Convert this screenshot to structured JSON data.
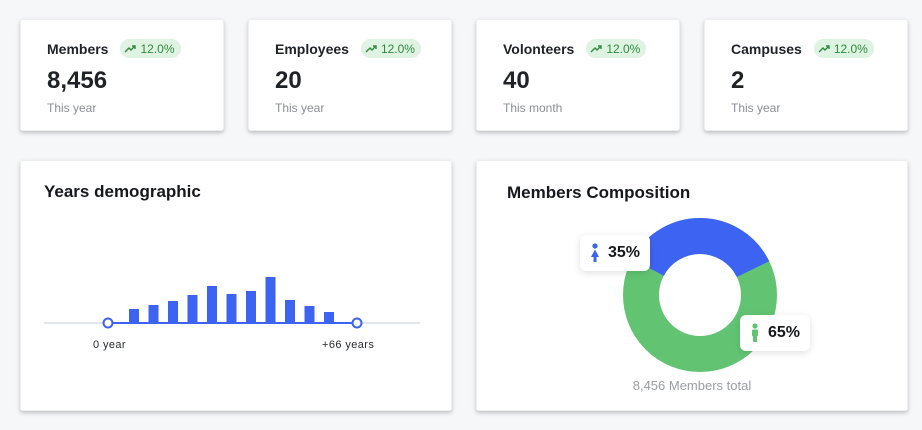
{
  "stats": [
    {
      "title": "Members",
      "badge": "12.0%",
      "value": "8,456",
      "period": "This year"
    },
    {
      "title": "Employees",
      "badge": "12.0%",
      "value": "20",
      "period": "This year"
    },
    {
      "title": "Volonteers",
      "badge": "12.0%",
      "value": "40",
      "period": "This month"
    },
    {
      "title": "Campuses",
      "badge": "12.0%",
      "value": "2",
      "period": "This year"
    }
  ],
  "years": {
    "title": "Years demographic",
    "start_label": "0 year",
    "end_label": "+66 years",
    "bar_color": "#3d63f2",
    "bars": [
      14,
      18,
      22,
      28,
      37,
      29,
      32,
      46,
      23,
      17,
      11
    ]
  },
  "composition": {
    "title": "Members Composition",
    "female_pct": "35%",
    "male_pct": "65%",
    "female_share": 0.35,
    "male_share": 0.65,
    "female_color": "#3d63f2",
    "male_color": "#62c473",
    "total": "8,456 Members total"
  },
  "colors": {
    "badge_bg": "#dff3e2",
    "badge_text": "#2f8a3f"
  }
}
